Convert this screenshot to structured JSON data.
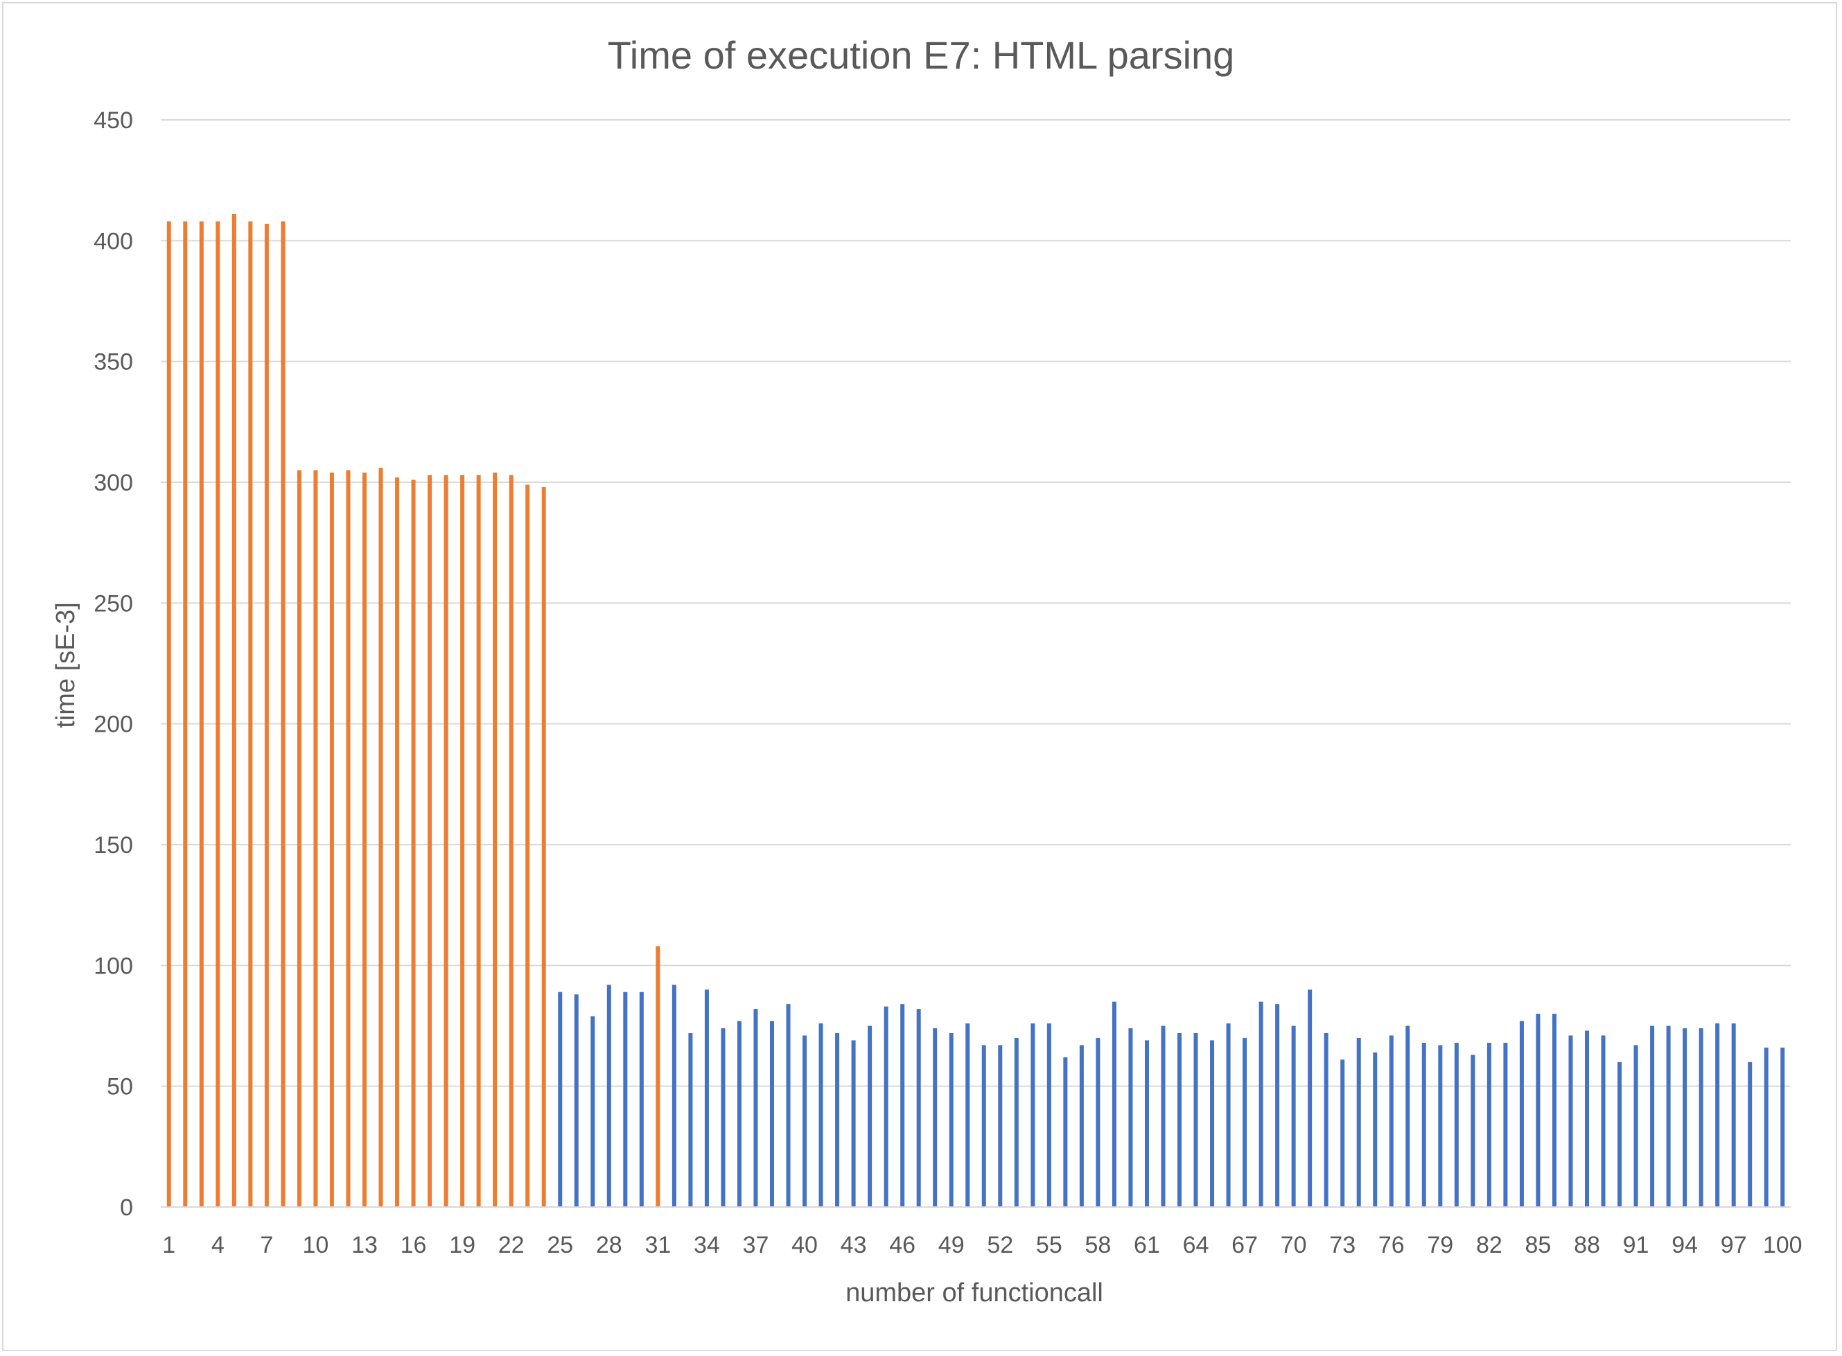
{
  "chart_data": {
    "type": "bar",
    "title": "Time of execution E7: HTML parsing",
    "xlabel": "number of functioncall",
    "ylabel": "time [sE-3]",
    "ylim": [
      0,
      450
    ],
    "yticks": [
      0,
      50,
      100,
      150,
      200,
      250,
      300,
      350,
      400,
      450
    ],
    "xtick_labels": [
      "1",
      "4",
      "7",
      "10",
      "13",
      "16",
      "19",
      "22",
      "25",
      "28",
      "31",
      "34",
      "37",
      "40",
      "43",
      "46",
      "49",
      "52",
      "55",
      "58",
      "61",
      "64",
      "67",
      "70",
      "73",
      "76",
      "79",
      "82",
      "85",
      "88",
      "91",
      "94",
      "97",
      "100"
    ],
    "grid": true,
    "legend": "none",
    "colors": {
      "highlight": "#ED7D31",
      "normal": "#4472C4",
      "grid": "#d9d9d9",
      "text": "#595959"
    },
    "x": [
      1,
      2,
      3,
      4,
      5,
      6,
      7,
      8,
      9,
      10,
      11,
      12,
      13,
      14,
      15,
      16,
      17,
      18,
      19,
      20,
      21,
      22,
      23,
      24,
      25,
      26,
      27,
      28,
      29,
      30,
      31,
      32,
      33,
      34,
      35,
      36,
      37,
      38,
      39,
      40,
      41,
      42,
      43,
      44,
      45,
      46,
      47,
      48,
      49,
      50,
      51,
      52,
      53,
      54,
      55,
      56,
      57,
      58,
      59,
      60,
      61,
      62,
      63,
      64,
      65,
      66,
      67,
      68,
      69,
      70,
      71,
      72,
      73,
      74,
      75,
      76,
      77,
      78,
      79,
      80,
      81,
      82,
      83,
      84,
      85,
      86,
      87,
      88,
      89,
      90,
      91,
      92,
      93,
      94,
      95,
      96,
      97,
      98,
      99,
      100
    ],
    "values": [
      408,
      408,
      408,
      408,
      411,
      408,
      407,
      408,
      305,
      305,
      304,
      305,
      304,
      306,
      302,
      301,
      303,
      303,
      303,
      303,
      304,
      303,
      299,
      298,
      89,
      88,
      79,
      92,
      89,
      89,
      108,
      92,
      72,
      90,
      74,
      77,
      82,
      77,
      84,
      71,
      76,
      72,
      69,
      75,
      83,
      84,
      82,
      74,
      72,
      76,
      67,
      67,
      70,
      76,
      76,
      62,
      67,
      70,
      85,
      74,
      69,
      75,
      72,
      72,
      69,
      76,
      70,
      85,
      84,
      75,
      90,
      72,
      61,
      70,
      64,
      71,
      75,
      68,
      67,
      68,
      63,
      68,
      68,
      77,
      80,
      80,
      71,
      73,
      71,
      60,
      67,
      75,
      75,
      74,
      74,
      76,
      76,
      60,
      66,
      66
    ],
    "highlighted_x": [
      1,
      2,
      3,
      4,
      5,
      6,
      7,
      8,
      9,
      10,
      11,
      12,
      13,
      14,
      15,
      16,
      17,
      18,
      19,
      20,
      21,
      22,
      23,
      24,
      31
    ]
  }
}
